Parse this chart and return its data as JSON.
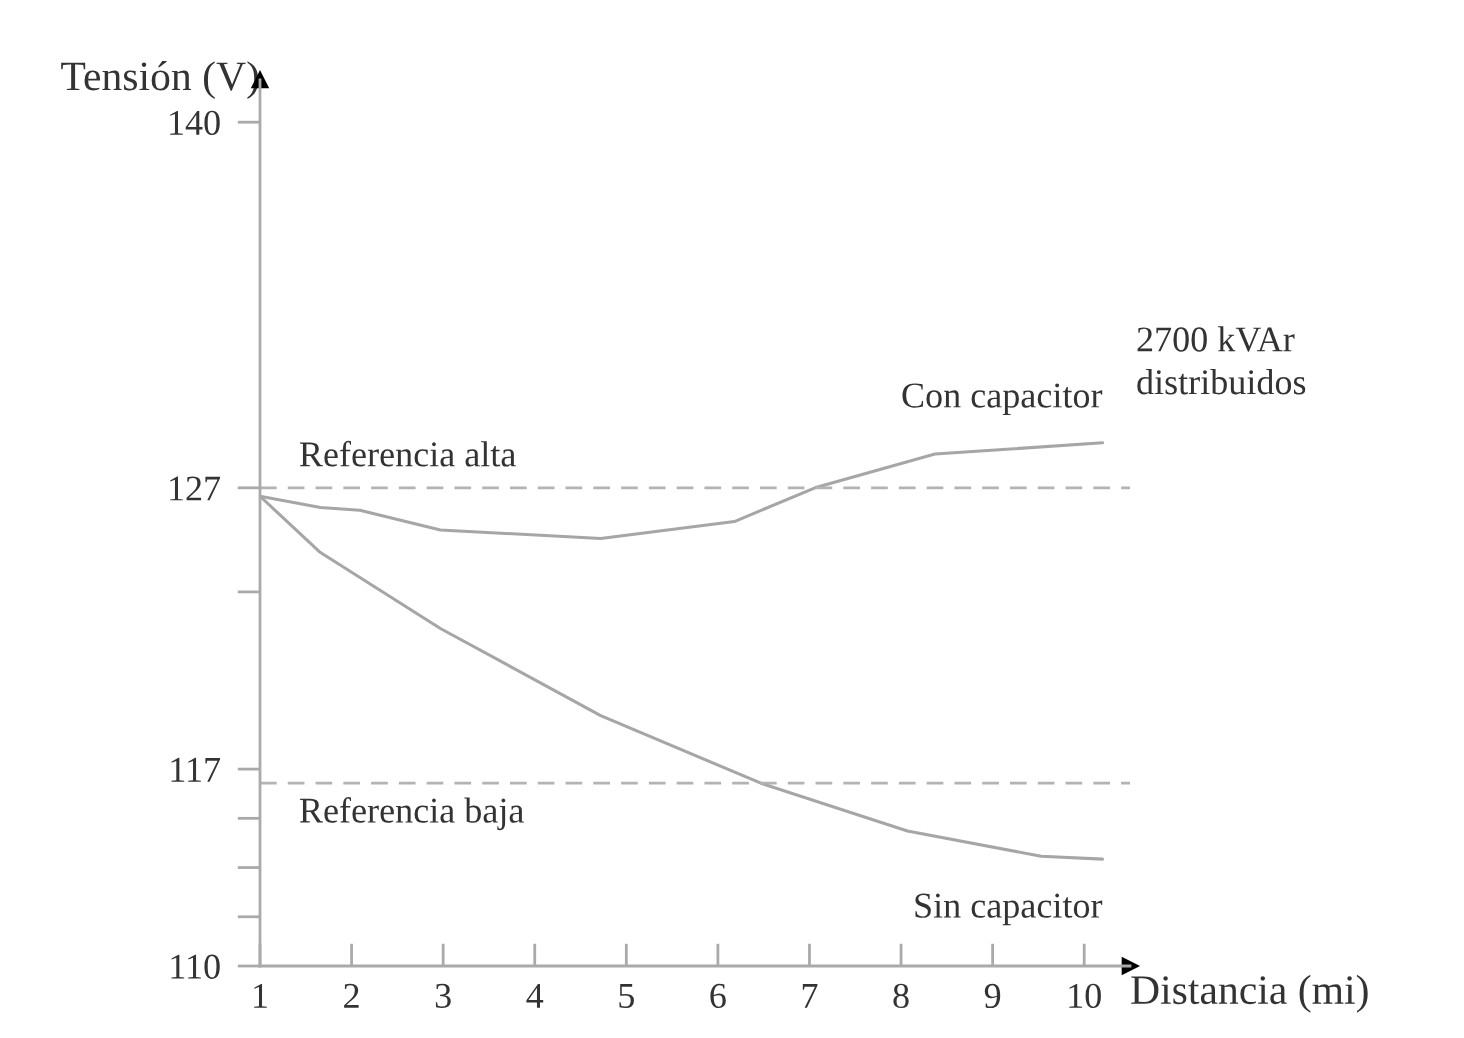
{
  "chart_data": {
    "type": "line",
    "xlabel": "Distancia (mi)",
    "ylabel": "Tensión (V)",
    "xlim": [
      1,
      10.5
    ],
    "ylim": [
      110,
      141.5
    ],
    "xticks": [
      1,
      2,
      3,
      4,
      5,
      6,
      7,
      8,
      9,
      10
    ],
    "yticks": [
      140,
      127,
      {
        "value": 123.3,
        "label": null
      },
      117,
      {
        "value": 115.25,
        "label": null
      },
      {
        "value": 113.5,
        "label": null
      },
      {
        "value": 111.75,
        "label": null
      },
      110
    ],
    "grid": false,
    "legend": false,
    "marker": "none",
    "line_style": "solid",
    "series": [
      {
        "name": "Con capacitor",
        "color": "#a6a6a6",
        "x": [
          1,
          1.66,
          2.09,
          2.97,
          4.72,
          6.18,
          7.06,
          8.37,
          10.2
        ],
        "values": [
          126.7,
          126.3,
          126.2,
          125.5,
          125.2,
          125.8,
          127,
          128.2,
          128.6
        ]
      },
      {
        "name": "Sin capacitor",
        "color": "#a6a6a6",
        "x": [
          1,
          1.66,
          2.97,
          4.72,
          6.47,
          8.07,
          9.53,
          10.2
        ],
        "values": [
          126.7,
          124.7,
          122,
          118.9,
          116.5,
          114.8,
          113.9,
          113.8
        ]
      }
    ],
    "ref_lines": [
      {
        "axis": "y",
        "value": 127,
        "label": "Referencia alta",
        "color": "#b3b3b3",
        "line_style": "dashed"
      },
      {
        "axis": "y",
        "value": 116.5,
        "label": "Referencia baja",
        "color": "#b3b3b3",
        "line_style": "dashed"
      }
    ],
    "annotations": [
      "2700 kVAr\ndistribuidos"
    ]
  }
}
